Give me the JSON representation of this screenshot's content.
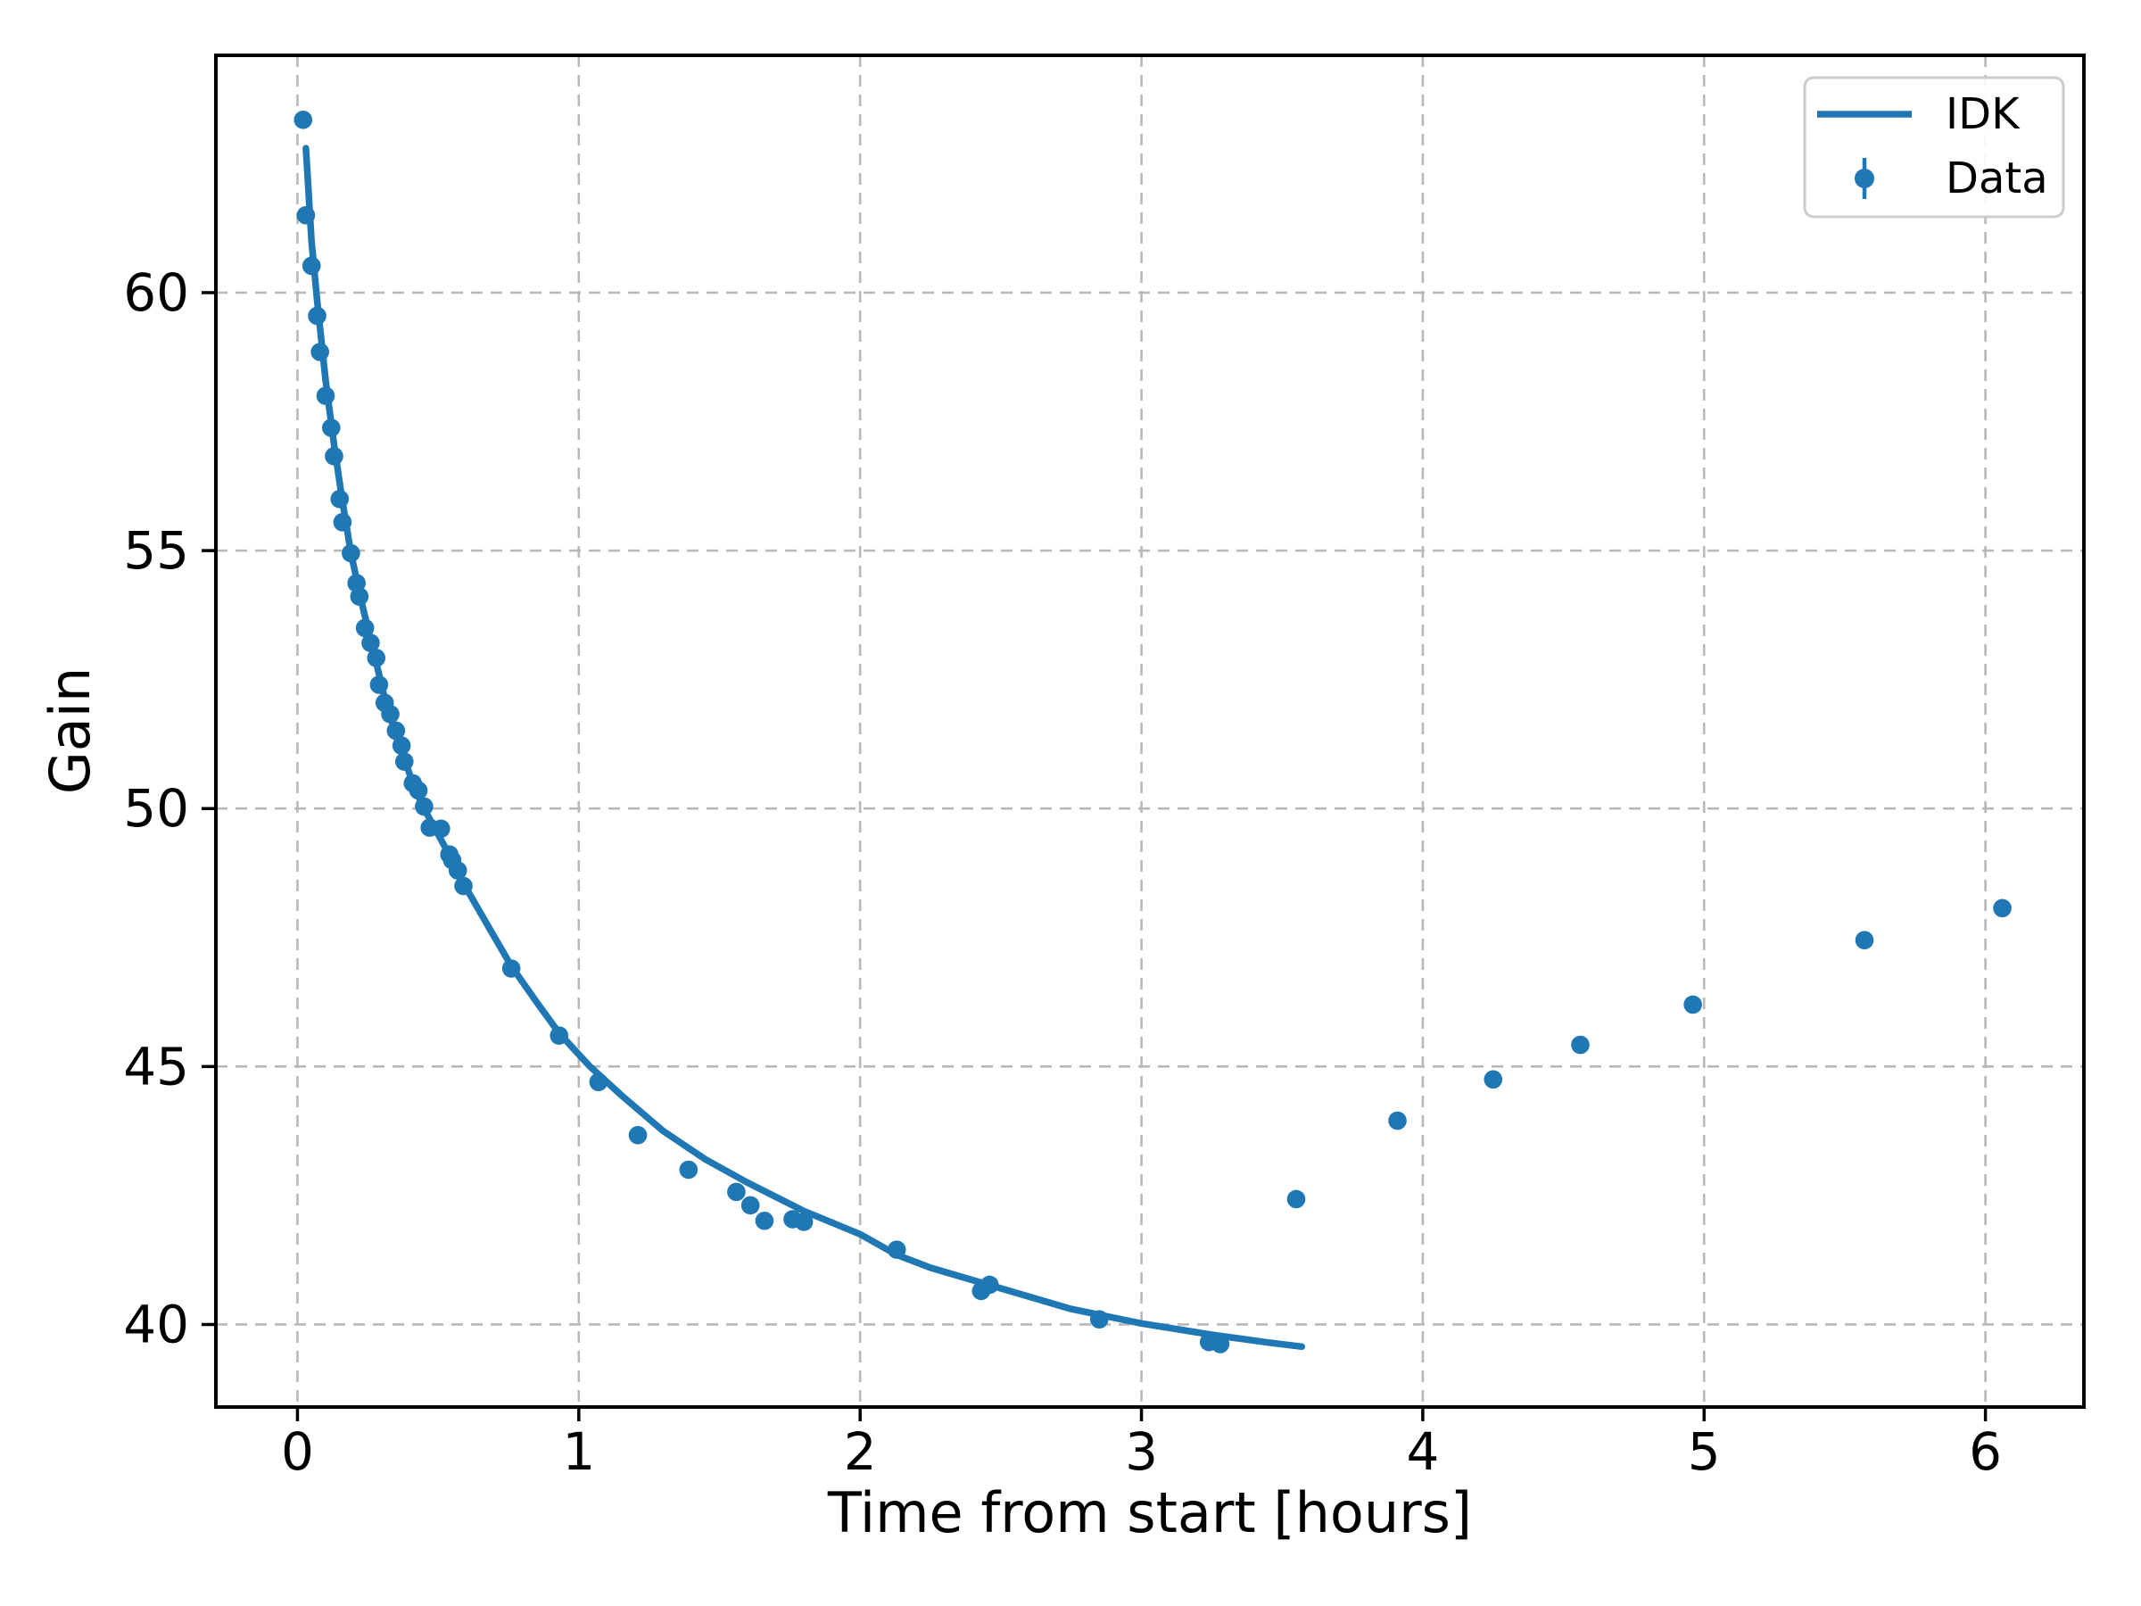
{
  "chart_data": {
    "type": "line+scatter",
    "title": "",
    "xlabel": "Time from start [hours]",
    "ylabel": "Gain",
    "xlim": [
      -0.29,
      6.35
    ],
    "ylim": [
      38.4,
      64.6
    ],
    "xticks": [
      0,
      1,
      2,
      3,
      4,
      5,
      6
    ],
    "yticks": [
      40,
      45,
      50,
      55,
      60
    ],
    "grid": {
      "visible": true,
      "style": "dashed"
    },
    "legend": {
      "position": "upper right",
      "entries": [
        {
          "label": "IDK",
          "type": "line"
        },
        {
          "label": "Data",
          "type": "errorbar"
        }
      ]
    },
    "colors": {
      "series": "#1f77b4",
      "grid": "#b8b8b8",
      "spine": "#000000",
      "text": "#000000",
      "legend_border": "#cccccc",
      "background": "#ffffff"
    },
    "series": [
      {
        "name": "IDK",
        "type": "line",
        "points": [
          [
            0.03,
            62.8
          ],
          [
            0.05,
            61.0
          ],
          [
            0.07,
            59.85
          ],
          [
            0.1,
            58.3
          ],
          [
            0.13,
            57.05
          ],
          [
            0.16,
            55.95
          ],
          [
            0.19,
            54.95
          ],
          [
            0.23,
            53.95
          ],
          [
            0.27,
            53.05
          ],
          [
            0.31,
            52.15
          ],
          [
            0.36,
            51.25
          ],
          [
            0.42,
            50.35
          ],
          [
            0.46,
            49.9
          ],
          [
            0.52,
            49.3
          ],
          [
            0.59,
            48.55
          ],
          [
            0.68,
            47.7
          ],
          [
            0.76,
            46.95
          ],
          [
            0.85,
            46.25
          ],
          [
            0.93,
            45.65
          ],
          [
            1.04,
            45.0
          ],
          [
            1.15,
            44.45
          ],
          [
            1.3,
            43.75
          ],
          [
            1.45,
            43.2
          ],
          [
            1.6,
            42.75
          ],
          [
            1.8,
            42.2
          ],
          [
            2.0,
            41.75
          ],
          [
            2.13,
            41.35
          ],
          [
            2.25,
            41.1
          ],
          [
            2.5,
            40.7
          ],
          [
            2.75,
            40.3
          ],
          [
            3.0,
            40.02
          ],
          [
            3.25,
            39.8
          ],
          [
            3.45,
            39.65
          ],
          [
            3.57,
            39.57
          ]
        ]
      },
      {
        "name": "Data",
        "type": "scatter",
        "yerr": 0.15,
        "points": [
          [
            0.02,
            63.35
          ],
          [
            0.03,
            61.5
          ],
          [
            0.05,
            60.52
          ],
          [
            0.07,
            59.55
          ],
          [
            0.08,
            58.85
          ],
          [
            0.1,
            58.0
          ],
          [
            0.12,
            57.38
          ],
          [
            0.13,
            56.83
          ],
          [
            0.15,
            56.0
          ],
          [
            0.16,
            55.55
          ],
          [
            0.19,
            54.95
          ],
          [
            0.21,
            54.37
          ],
          [
            0.22,
            54.11
          ],
          [
            0.24,
            53.5
          ],
          [
            0.26,
            53.21
          ],
          [
            0.28,
            52.92
          ],
          [
            0.29,
            52.4
          ],
          [
            0.31,
            52.05
          ],
          [
            0.33,
            51.83
          ],
          [
            0.35,
            51.51
          ],
          [
            0.37,
            51.22
          ],
          [
            0.38,
            50.91
          ],
          [
            0.41,
            50.49
          ],
          [
            0.43,
            50.35
          ],
          [
            0.45,
            50.04
          ],
          [
            0.47,
            49.63
          ],
          [
            0.51,
            49.61
          ],
          [
            0.54,
            49.11
          ],
          [
            0.55,
            49.0
          ],
          [
            0.57,
            48.8
          ],
          [
            0.59,
            48.5
          ],
          [
            0.76,
            46.9
          ],
          [
            0.93,
            45.6
          ],
          [
            1.07,
            44.7
          ],
          [
            1.21,
            43.67
          ],
          [
            1.39,
            43.0
          ],
          [
            1.56,
            42.57
          ],
          [
            1.61,
            42.31
          ],
          [
            1.66,
            42.01
          ],
          [
            1.76,
            42.04
          ],
          [
            1.8,
            41.99
          ],
          [
            2.13,
            41.45
          ],
          [
            2.43,
            40.65
          ],
          [
            2.46,
            40.77
          ],
          [
            2.85,
            40.1
          ],
          [
            3.24,
            39.66
          ],
          [
            3.28,
            39.62
          ],
          [
            3.55,
            42.43
          ],
          [
            3.91,
            43.95
          ],
          [
            4.25,
            44.75
          ],
          [
            4.56,
            45.42
          ],
          [
            4.96,
            46.2
          ],
          [
            5.57,
            47.45
          ],
          [
            6.06,
            48.07
          ]
        ]
      }
    ]
  }
}
